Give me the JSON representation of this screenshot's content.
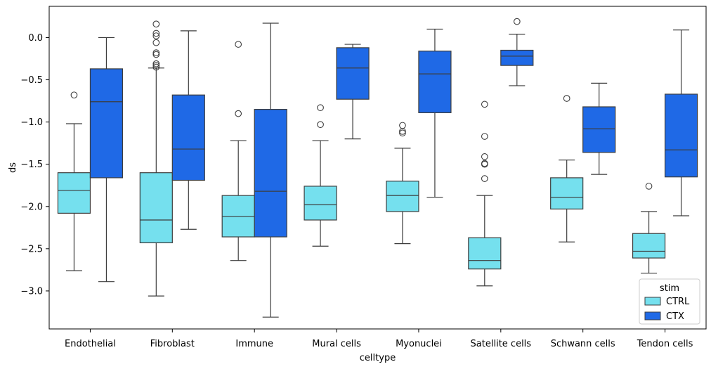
{
  "chart_data": {
    "type": "box",
    "xlabel": "celltype",
    "ylabel": "ds",
    "ylim": [
      -3.45,
      0.37
    ],
    "y_ticks": [
      0.0,
      -0.5,
      -1.0,
      -1.5,
      -2.0,
      -2.5,
      -3.0
    ],
    "y_tick_labels": [
      "0.0",
      "−0.5",
      "−1.0",
      "−1.5",
      "−2.0",
      "−2.5",
      "−3.0"
    ],
    "categories": [
      "Endothelial",
      "Fibroblast",
      "Immune",
      "Mural cells",
      "Myonuclei",
      "Satellite cells",
      "Schwann cells",
      "Tendon cells"
    ],
    "legend": {
      "title": "stim",
      "position": "lower-right",
      "entries": [
        "CTRL",
        "CTX"
      ]
    },
    "series": [
      {
        "name": "CTRL",
        "color": "#75e0ee",
        "boxes": [
          {
            "whisker_low": -2.76,
            "q1": -2.08,
            "median": -1.81,
            "q3": -1.6,
            "whisker_high": -1.02,
            "outliers": [
              -0.68
            ]
          },
          {
            "whisker_low": -3.06,
            "q1": -2.43,
            "median": -2.16,
            "q3": -1.6,
            "whisker_high": -0.36,
            "outliers": [
              0.16,
              0.05,
              0.02,
              -0.06,
              -0.18,
              -0.2,
              -0.31,
              -0.33,
              -0.35
            ]
          },
          {
            "whisker_low": -2.64,
            "q1": -2.36,
            "median": -2.12,
            "q3": -1.87,
            "whisker_high": -1.22,
            "outliers": [
              -0.08,
              -0.9
            ]
          },
          {
            "whisker_low": -2.47,
            "q1": -2.16,
            "median": -1.98,
            "q3": -1.76,
            "whisker_high": -1.22,
            "outliers": [
              -0.83,
              -1.03
            ]
          },
          {
            "whisker_low": -2.44,
            "q1": -2.06,
            "median": -1.87,
            "q3": -1.7,
            "whisker_high": -1.31,
            "outliers": [
              -1.04,
              -1.11,
              -1.13
            ]
          },
          {
            "whisker_low": -2.94,
            "q1": -2.74,
            "median": -2.64,
            "q3": -2.37,
            "whisker_high": -1.87,
            "outliers": [
              -0.79,
              -1.17,
              -1.41,
              -1.49,
              -1.5,
              -1.67
            ]
          },
          {
            "whisker_low": -2.42,
            "q1": -2.03,
            "median": -1.89,
            "q3": -1.66,
            "whisker_high": -1.45,
            "outliers": [
              -0.72
            ]
          },
          {
            "whisker_low": -2.79,
            "q1": -2.61,
            "median": -2.53,
            "q3": -2.32,
            "whisker_high": -2.06,
            "outliers": [
              -1.76
            ]
          }
        ]
      },
      {
        "name": "CTX",
        "color": "#1f69e6",
        "boxes": [
          {
            "whisker_low": -2.89,
            "q1": -1.66,
            "median": -0.76,
            "q3": -0.37,
            "whisker_high": 0.0,
            "outliers": []
          },
          {
            "whisker_low": -2.27,
            "q1": -1.69,
            "median": -1.32,
            "q3": -0.68,
            "whisker_high": 0.08,
            "outliers": []
          },
          {
            "whisker_low": -3.31,
            "q1": -2.36,
            "median": -1.82,
            "q3": -0.85,
            "whisker_high": 0.17,
            "outliers": []
          },
          {
            "whisker_low": -1.2,
            "q1": -0.73,
            "median": -0.36,
            "q3": -0.12,
            "whisker_high": -0.08,
            "outliers": []
          },
          {
            "whisker_low": -1.89,
            "q1": -0.89,
            "median": -0.43,
            "q3": -0.16,
            "whisker_high": 0.1,
            "outliers": []
          },
          {
            "whisker_low": -0.57,
            "q1": -0.33,
            "median": -0.22,
            "q3": -0.15,
            "whisker_high": 0.04,
            "outliers": [
              0.19
            ]
          },
          {
            "whisker_low": -1.62,
            "q1": -1.36,
            "median": -1.08,
            "q3": -0.82,
            "whisker_high": -0.54,
            "outliers": []
          },
          {
            "whisker_low": -2.11,
            "q1": -1.65,
            "median": -1.33,
            "q3": -0.67,
            "whisker_high": 0.09,
            "outliers": []
          }
        ]
      }
    ]
  }
}
